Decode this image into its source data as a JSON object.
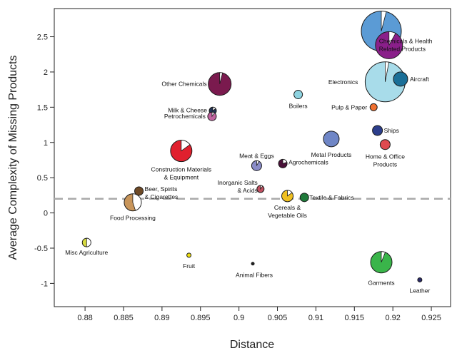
{
  "chart_data": {
    "type": "scatter",
    "xlabel": "Distance",
    "ylabel": "Average Complexity of Missing Products",
    "xlim": [
      0.876,
      0.9275
    ],
    "ylim": [
      -1.33,
      2.9
    ],
    "x_ticks": [
      "0.88",
      "0.885",
      "0.89",
      "0.895",
      "0.9",
      "0.905",
      "0.91",
      "0.915",
      "0.92",
      "0.925"
    ],
    "y_ticks": [
      "2.5",
      "2",
      "1.5",
      "1",
      "0.5",
      "0",
      "-0.5",
      "-1"
    ],
    "reference_line_y": 0.2,
    "points": [
      {
        "label": "Machinery",
        "x": 0.9185,
        "y": 2.58,
        "size": 28,
        "color": "#5b9bd5",
        "share": 0.04
      },
      {
        "label": "Chemicals & Health\nRelated Products",
        "x": 0.9195,
        "y": 2.38,
        "size": 19,
        "color": "#8a1f8a",
        "share": 0.08
      },
      {
        "label": "Electronics",
        "x": 0.919,
        "y": 1.86,
        "size": 28,
        "color": "#a8dcea",
        "share": 0.03
      },
      {
        "label": "Aircraft",
        "x": 0.921,
        "y": 1.9,
        "size": 10,
        "color": "#1a6f98",
        "share": 0
      },
      {
        "label": "Other Chemicals",
        "x": 0.8975,
        "y": 1.83,
        "size": 16,
        "color": "#7a1a4e",
        "share": 0.04
      },
      {
        "label": "Boilers",
        "x": 0.9077,
        "y": 1.68,
        "size": 6,
        "color": "#8ed3e0",
        "share": 0
      },
      {
        "label": "Pulp & Paper",
        "x": 0.9175,
        "y": 1.5,
        "size": 5,
        "color": "#f07030",
        "share": 0
      },
      {
        "label": "Milk & Cheese",
        "x": 0.8966,
        "y": 1.45,
        "size": 5,
        "color": "#223355",
        "share": 0.15
      },
      {
        "label": "Petrochemicals",
        "x": 0.8965,
        "y": 1.37,
        "size": 6,
        "color": "#c064a0",
        "share": 0.1
      },
      {
        "label": "Ships",
        "x": 0.918,
        "y": 1.17,
        "size": 7,
        "color": "#2c3e8c",
        "share": 0
      },
      {
        "label": "Metal Products",
        "x": 0.912,
        "y": 1.05,
        "size": 11,
        "color": "#6f86c6",
        "share": 0
      },
      {
        "label": "Home & Office\nProducts",
        "x": 0.919,
        "y": 0.97,
        "size": 7,
        "color": "#e04a50",
        "share": 0
      },
      {
        "label": "Construction Materials\n& Equipment",
        "x": 0.8925,
        "y": 0.88,
        "size": 15,
        "color": "#e0202e",
        "share": 0.15
      },
      {
        "label": "Meat & Eggs",
        "x": 0.9023,
        "y": 0.67,
        "size": 7,
        "color": "#8a8cc8",
        "share": 0.08
      },
      {
        "label": "Agrochemicals",
        "x": 0.9057,
        "y": 0.7,
        "size": 6,
        "color": "#4a1038",
        "share": 0.2
      },
      {
        "label": "Inorganic Salts\n& Acids",
        "x": 0.9028,
        "y": 0.34,
        "size": 5,
        "color": "#c05060",
        "share": 0.1
      },
      {
        "label": "Beer, Spirits\n& Cigarettes",
        "x": 0.887,
        "y": 0.31,
        "size": 6,
        "color": "#6e4a26",
        "share": 0
      },
      {
        "label": "Cereals &\nVegetable Oils",
        "x": 0.9063,
        "y": 0.24,
        "size": 8,
        "color": "#f0c020",
        "share": 0.15
      },
      {
        "label": "Textile & Fabrics",
        "x": 0.9085,
        "y": 0.22,
        "size": 6,
        "color": "#1f7a3a",
        "share": 0
      },
      {
        "label": "Food Processing",
        "x": 0.8862,
        "y": 0.15,
        "size": 12,
        "color": "#c8955a",
        "share": 0.45
      },
      {
        "label": "Misc Agriculture",
        "x": 0.8802,
        "y": -0.42,
        "size": 6,
        "color": "#d8dc40",
        "share": 0.5
      },
      {
        "label": "Fruit",
        "x": 0.8935,
        "y": -0.6,
        "size": 3,
        "color": "#f0e010",
        "share": 0
      },
      {
        "label": "Animal Fibers",
        "x": 0.9018,
        "y": -0.72,
        "size": 2,
        "color": "#222222",
        "share": 0
      },
      {
        "label": "Garments",
        "x": 0.9185,
        "y": -0.7,
        "size": 15,
        "color": "#3ab54a",
        "share": 0.06
      },
      {
        "label": "Leather",
        "x": 0.9235,
        "y": -0.95,
        "size": 3,
        "color": "#2a2a6a",
        "share": 0
      }
    ]
  }
}
